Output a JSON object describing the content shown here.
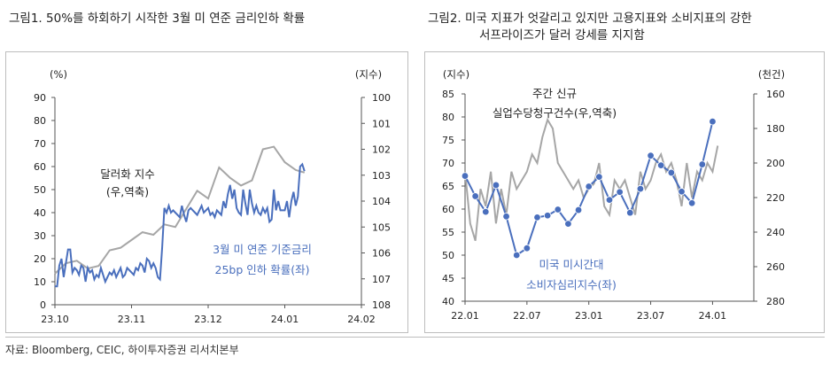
{
  "chart_data": [
    {
      "type": "line",
      "title": "그림1.  50%를 하회하기 시작한 3월 미 연준 금리인하 확률",
      "left_axis_unit": "(%)",
      "right_axis_unit": "(지수)",
      "left_ylim": [
        0,
        90
      ],
      "left_ticks": [
        "0",
        "10",
        "20",
        "30",
        "40",
        "50",
        "60",
        "70",
        "80",
        "90"
      ],
      "right_ylim": [
        108,
        100
      ],
      "right_ticks": [
        "100",
        "101",
        "102",
        "103",
        "104",
        "105",
        "106",
        "107",
        "108"
      ],
      "x_ticks": [
        "23.10",
        "23.11",
        "23.12",
        "24.01",
        "24.02"
      ],
      "series": [
        {
          "name": "3월 미 연준 기준금리 25bp 인하 확률(좌)",
          "label_lines": [
            "3월 미 연준 기준금리",
            "25bp 인하 확률(좌)"
          ],
          "color": "#4a6fbd",
          "axis": "left",
          "x": [
            0,
            1,
            2,
            3,
            4,
            5,
            6,
            7,
            8,
            9,
            10,
            11,
            12,
            13,
            14,
            15,
            16,
            17,
            18,
            19,
            20,
            21,
            22,
            23,
            24,
            25,
            26,
            27,
            28,
            29,
            30,
            31,
            32,
            33,
            34,
            35,
            36,
            37,
            38,
            39,
            40,
            41,
            42,
            43,
            44,
            45,
            46,
            47,
            48,
            49,
            50,
            51,
            52,
            53,
            54,
            55,
            56,
            57,
            58,
            59,
            60,
            61,
            62,
            63,
            64,
            65,
            66,
            67,
            68,
            69,
            70,
            71,
            72,
            73,
            74,
            75,
            76,
            77,
            78,
            79,
            80,
            81,
            82,
            83,
            84,
            85,
            86,
            87,
            88,
            89,
            90,
            91,
            92,
            93,
            94,
            95,
            96,
            97,
            98,
            99,
            100,
            101,
            102,
            103,
            104,
            105,
            106,
            107,
            108,
            109,
            110,
            111,
            112,
            113,
            114
          ],
          "values": [
            8,
            8,
            17,
            20,
            12,
            18,
            24,
            24,
            14,
            16,
            15,
            13,
            17,
            16,
            10,
            16,
            14,
            15,
            11,
            13,
            12,
            16,
            13,
            10,
            12,
            14,
            13,
            15,
            12,
            14,
            16,
            12,
            13,
            16,
            15,
            14,
            13,
            16,
            15,
            18,
            17,
            14,
            20,
            19,
            16,
            18,
            16,
            12,
            11,
            25,
            42,
            40,
            43,
            40,
            41,
            40,
            39,
            38,
            43,
            39,
            36,
            41,
            42,
            41,
            40,
            39,
            41,
            43,
            40,
            41,
            42,
            39,
            40,
            38,
            41,
            40,
            39,
            45,
            42,
            48,
            52,
            46,
            50,
            42,
            40,
            39,
            50,
            44,
            39,
            50,
            44,
            40,
            43,
            40,
            39,
            42,
            40,
            42,
            36,
            37,
            50,
            41,
            45,
            41,
            41,
            41,
            45,
            38,
            45,
            49,
            43,
            47,
            60,
            61,
            58
          ]
        },
        {
          "name": "달러화 지수(우,역축)",
          "label_lines": [
            "달러화 지수",
            "(우,역축)"
          ],
          "color": "#a6a6a6",
          "axis": "right",
          "x": [
            0,
            5,
            10,
            15,
            20,
            25,
            30,
            35,
            40,
            45,
            50,
            55,
            60,
            65,
            70,
            75,
            80,
            85,
            90,
            95,
            100,
            105,
            110,
            114
          ],
          "values": [
            106.8,
            106.4,
            106.3,
            106.6,
            106.5,
            105.9,
            105.8,
            105.5,
            105.2,
            105.3,
            104.9,
            105.0,
            104.3,
            103.6,
            103.9,
            102.7,
            103.1,
            103.4,
            103.2,
            102.0,
            101.9,
            102.5,
            102.8,
            102.9
          ]
        }
      ]
    },
    {
      "type": "line",
      "title_lines": [
        "그림2.  미국 지표가 엇갈리고 있지만 고용지표와 소비지표의 강한",
        "서프라이즈가 달러 강세를 지지함"
      ],
      "left_axis_unit": "(지수)",
      "right_axis_unit": "(천건)",
      "left_ylim": [
        40,
        85
      ],
      "left_ticks": [
        "40",
        "45",
        "50",
        "55",
        "60",
        "65",
        "70",
        "75",
        "80",
        "85"
      ],
      "right_ylim": [
        280,
        160
      ],
      "right_ticks": [
        "160",
        "180",
        "200",
        "220",
        "240",
        "260",
        "280"
      ],
      "x_ticks": [
        "22.01",
        "22.07",
        "23.01",
        "23.07",
        "24.01"
      ],
      "series": [
        {
          "name": "미국 미시간대 소비자심리지수(좌)",
          "label_lines": [
            "미국 미시간대",
            "소비자심리지수(좌)"
          ],
          "color": "#4a6fbd",
          "axis": "left",
          "marker": "circle",
          "x": [
            0,
            1,
            2,
            3,
            4,
            5,
            6,
            7,
            8,
            9,
            10,
            11,
            12,
            13,
            14,
            15,
            16,
            17,
            18,
            19,
            20,
            21,
            22,
            23,
            24,
            25
          ],
          "values": [
            67.2,
            62.8,
            59.4,
            65.2,
            58.4,
            50.0,
            51.5,
            58.2,
            58.6,
            59.9,
            56.8,
            59.8,
            64.9,
            67.0,
            62.0,
            63.7,
            59.2,
            64.4,
            71.6,
            69.5,
            67.9,
            63.8,
            61.3,
            69.7,
            79.0,
            null
          ],
          "note": "monthly observations from 22.01; last value 79.0 in 24.01"
        },
        {
          "name": "주간 신규 실업수당청구건수(우,역축)",
          "label_lines": [
            "주간 신규",
            "실업수당청구건수(우,역축)"
          ],
          "color": "#a6a6a6",
          "axis": "right",
          "x": [
            0,
            0.5,
            1,
            1.5,
            2,
            2.5,
            3,
            3.5,
            4,
            4.5,
            5,
            5.5,
            6,
            6.5,
            7,
            7.5,
            8,
            8.5,
            9,
            9.5,
            10,
            10.5,
            11,
            11.5,
            12,
            12.5,
            13,
            13.5,
            14,
            14.5,
            15,
            15.5,
            16,
            16.5,
            17,
            17.5,
            18,
            18.5,
            19,
            19.5,
            20,
            20.5,
            21,
            21.5,
            22,
            22.5,
            23,
            23.5,
            24,
            24.5
          ],
          "values": [
            205,
            235,
            245,
            215,
            225,
            205,
            235,
            215,
            230,
            205,
            215,
            210,
            205,
            195,
            200,
            185,
            175,
            180,
            200,
            205,
            210,
            215,
            210,
            220,
            215,
            212,
            200,
            225,
            230,
            210,
            215,
            210,
            220,
            230,
            205,
            215,
            210,
            200,
            195,
            205,
            200,
            210,
            225,
            200,
            220,
            205,
            210,
            200,
            205,
            190
          ]
        }
      ]
    }
  ],
  "source": "자료: Bloomberg, CEIC, 하이투자증권 리서치본부"
}
